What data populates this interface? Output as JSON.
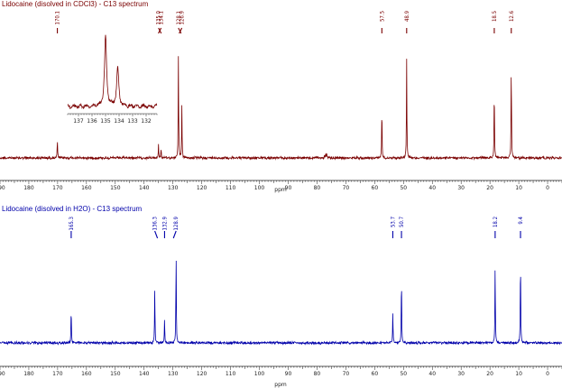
{
  "chart_data": [
    {
      "type": "line",
      "title": "Lidocaine (disolved in CDCl3) - C13 spectrum",
      "xlabel": "ppm",
      "ylabel": "",
      "x_reversed": true,
      "xlim": [
        190,
        -5
      ],
      "ticks": [
        190,
        180,
        170,
        160,
        150,
        140,
        130,
        120,
        110,
        100,
        90,
        80,
        70,
        60,
        50,
        40,
        30,
        20,
        10,
        0
      ],
      "tick_labels": [
        "190",
        "180",
        "170",
        "160",
        "150",
        "140",
        "130",
        "120",
        "110",
        "100",
        "90",
        "80",
        "70",
        "60",
        "50",
        "40",
        "30",
        "20",
        "10",
        "0"
      ],
      "color": "#7a0000",
      "peaks": [
        {
          "x": 170.1,
          "height": 0.17
        },
        {
          "x": 135.0,
          "height": 0.13
        },
        {
          "x": 134.1,
          "height": 0.09
        },
        {
          "x": 128.1,
          "height": 0.97
        },
        {
          "x": 126.9,
          "height": 0.49
        },
        {
          "x": 77.4,
          "height": 0.03
        },
        {
          "x": 77.0,
          "height": 0.04
        },
        {
          "x": 76.6,
          "height": 0.03
        },
        {
          "x": 57.5,
          "height": 0.48
        },
        {
          "x": 48.9,
          "height": 0.95
        },
        {
          "x": 18.5,
          "height": 0.68
        },
        {
          "x": 12.6,
          "height": 0.91
        }
      ],
      "peak_labels": [
        {
          "x": 170.1,
          "text": "170.1",
          "lean": 0
        },
        {
          "x": 135.0,
          "text": "135.0",
          "lean": 3
        },
        {
          "x": 134.1,
          "text": "134.1",
          "lean": -3
        },
        {
          "x": 128.1,
          "text": "128.1",
          "lean": 3
        },
        {
          "x": 126.9,
          "text": "126.9",
          "lean": -3
        },
        {
          "x": 57.5,
          "text": "57.5",
          "lean": 0
        },
        {
          "x": 48.9,
          "text": "48.9",
          "lean": 0
        },
        {
          "x": 18.5,
          "text": "18.5",
          "lean": 0
        },
        {
          "x": 12.6,
          "text": "12.6",
          "lean": 0
        }
      ],
      "inset": {
        "xlim": [
          137.8,
          131.2
        ],
        "ticks": [
          137,
          136,
          135,
          134,
          133,
          132
        ],
        "tick_labels": [
          "137",
          "136",
          "135",
          "134",
          "133",
          "132"
        ],
        "peaks": [
          {
            "x": 135.0,
            "height": 1.0
          },
          {
            "x": 134.1,
            "height": 0.55
          }
        ]
      }
    },
    {
      "type": "line",
      "title": "Lidocaine (disolved in H2O) - C13 spectrum",
      "xlabel": "ppm",
      "ylabel": "",
      "x_reversed": true,
      "xlim": [
        190,
        -5
      ],
      "ticks": [
        190,
        180,
        170,
        160,
        150,
        140,
        130,
        120,
        110,
        100,
        90,
        80,
        70,
        60,
        50,
        40,
        30,
        20,
        10,
        0
      ],
      "tick_labels": [
        "190",
        "180",
        "170",
        "160",
        "150",
        "140",
        "130",
        "120",
        "110",
        "100",
        "90",
        "80",
        "70",
        "60",
        "50",
        "40",
        "30",
        "20",
        "10",
        "0"
      ],
      "color": "#0000aa",
      "peaks": [
        {
          "x": 165.3,
          "height": 0.38
        },
        {
          "x": 136.3,
          "height": 0.6
        },
        {
          "x": 132.9,
          "height": 0.27
        },
        {
          "x": 128.9,
          "height": 1.0
        },
        {
          "x": 53.7,
          "height": 0.33
        },
        {
          "x": 50.7,
          "height": 0.74
        },
        {
          "x": 18.2,
          "height": 0.87
        },
        {
          "x": 9.4,
          "height": 0.94
        }
      ],
      "peak_labels": [
        {
          "x": 165.3,
          "text": "165.3",
          "lean": 0
        },
        {
          "x": 136.3,
          "text": "136.3",
          "lean": 3
        },
        {
          "x": 132.9,
          "text": "132.9",
          "lean": 0
        },
        {
          "x": 128.9,
          "text": "128.9",
          "lean": -3
        },
        {
          "x": 53.7,
          "text": "53.7",
          "lean": 0
        },
        {
          "x": 50.7,
          "text": "50.7",
          "lean": 0
        },
        {
          "x": 18.2,
          "text": "18.2",
          "lean": 0
        },
        {
          "x": 9.4,
          "text": "9.4",
          "lean": 0
        }
      ]
    }
  ]
}
